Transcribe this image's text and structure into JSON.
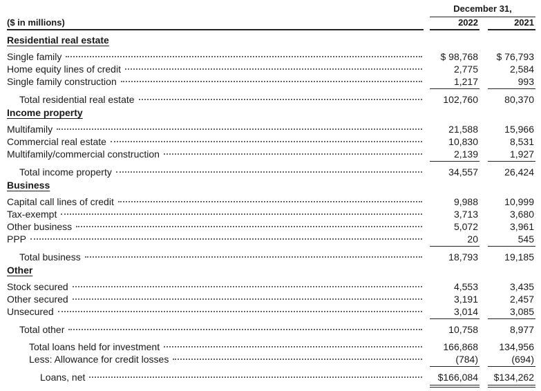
{
  "header": {
    "period": "December 31,",
    "units": "($ in millions)",
    "years": [
      "2022",
      "2021"
    ]
  },
  "sections": [
    {
      "title": "Residential real estate",
      "rows": [
        {
          "label": "Single family",
          "values": [
            "$ 98,768",
            "$ 76,793"
          ]
        },
        {
          "label": "Home equity lines of credit",
          "values": [
            "2,775",
            "2,584"
          ]
        },
        {
          "label": "Single family construction",
          "values": [
            "1,217",
            "993"
          ]
        }
      ],
      "total": {
        "label": "Total residential real estate",
        "values": [
          "102,760",
          "80,370"
        ]
      }
    },
    {
      "title": "Income property",
      "rows": [
        {
          "label": "Multifamily",
          "values": [
            "21,588",
            "15,966"
          ]
        },
        {
          "label": "Commercial real estate",
          "values": [
            "10,830",
            "8,531"
          ]
        },
        {
          "label": "Multifamily/commercial construction",
          "values": [
            "2,139",
            "1,927"
          ]
        }
      ],
      "total": {
        "label": "Total income property",
        "values": [
          "34,557",
          "26,424"
        ]
      }
    },
    {
      "title": "Business",
      "rows": [
        {
          "label": "Capital call lines of credit",
          "values": [
            "9,988",
            "10,999"
          ]
        },
        {
          "label": "Tax-exempt",
          "values": [
            "3,713",
            "3,680"
          ]
        },
        {
          "label": "Other business",
          "values": [
            "5,072",
            "3,961"
          ]
        },
        {
          "label": "PPP",
          "values": [
            "20",
            "545"
          ]
        }
      ],
      "total": {
        "label": "Total business",
        "values": [
          "18,793",
          "19,185"
        ]
      }
    },
    {
      "title": "Other",
      "rows": [
        {
          "label": "Stock secured",
          "values": [
            "4,553",
            "3,435"
          ]
        },
        {
          "label": "Other secured",
          "values": [
            "3,191",
            "2,457"
          ]
        },
        {
          "label": "Unsecured",
          "values": [
            "3,014",
            "3,085"
          ]
        }
      ],
      "total": {
        "label": "Total other",
        "values": [
          "10,758",
          "8,977"
        ]
      }
    }
  ],
  "summary": [
    {
      "label": "Total loans held for investment",
      "values": [
        "166,868",
        "134,956"
      ]
    },
    {
      "label": "Less: Allowance for credit losses",
      "values": [
        "(784)",
        "(694)"
      ]
    },
    {
      "label": "Loans, net",
      "values": [
        "$166,084",
        "$134,262"
      ]
    }
  ]
}
